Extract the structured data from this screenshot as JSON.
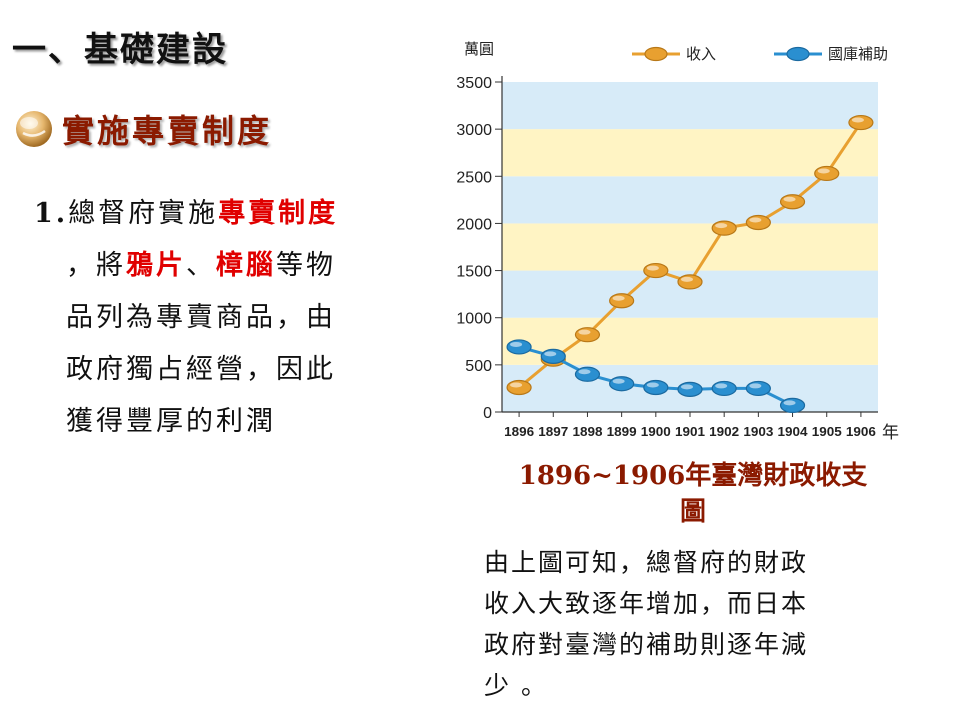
{
  "slide": {
    "title": "一、基礎建設",
    "subtitle": "實施專賣制度",
    "point": {
      "number": "1.",
      "line1_pre": "總督府實施",
      "line1_hl": "專賣制度",
      "line2_pre": "，將",
      "line2_hl1": "鴉片",
      "line2_mid": "、",
      "line2_hl2": "樟腦",
      "line2_post": "等物",
      "line3": "品列為專賣商品，由",
      "line4": "政府獨占經營，因此",
      "line5": "獲得豐厚的利潤"
    },
    "caption_line1": "1896~1906年臺灣財政收支",
    "caption_line2": "圖",
    "note": [
      "由上圖可知，總督府的財政",
      "收入大致逐年增加，而日本",
      "政府對臺灣的補助則逐年減",
      "少 。"
    ]
  },
  "chart_data": {
    "type": "line",
    "ylabel": "萬圓",
    "xlabel": "年",
    "ylim": [
      0,
      3500
    ],
    "yticks": [
      0,
      500,
      1000,
      1500,
      2000,
      2500,
      3000,
      3500
    ],
    "categories": [
      "1896",
      "1897",
      "1898",
      "1899",
      "1900",
      "1901",
      "1902",
      "1903",
      "1904",
      "1905",
      "1906"
    ],
    "legend_position": "top-right",
    "series": [
      {
        "name": "收入",
        "color": "#e8a030",
        "values": [
          260,
          560,
          820,
          1180,
          1500,
          1380,
          1950,
          2010,
          2230,
          2530,
          3070
        ]
      },
      {
        "name": "國庫補助",
        "color": "#2a8fd0",
        "values": [
          690,
          590,
          400,
          300,
          260,
          240,
          250,
          250,
          70,
          null,
          null
        ]
      }
    ]
  }
}
